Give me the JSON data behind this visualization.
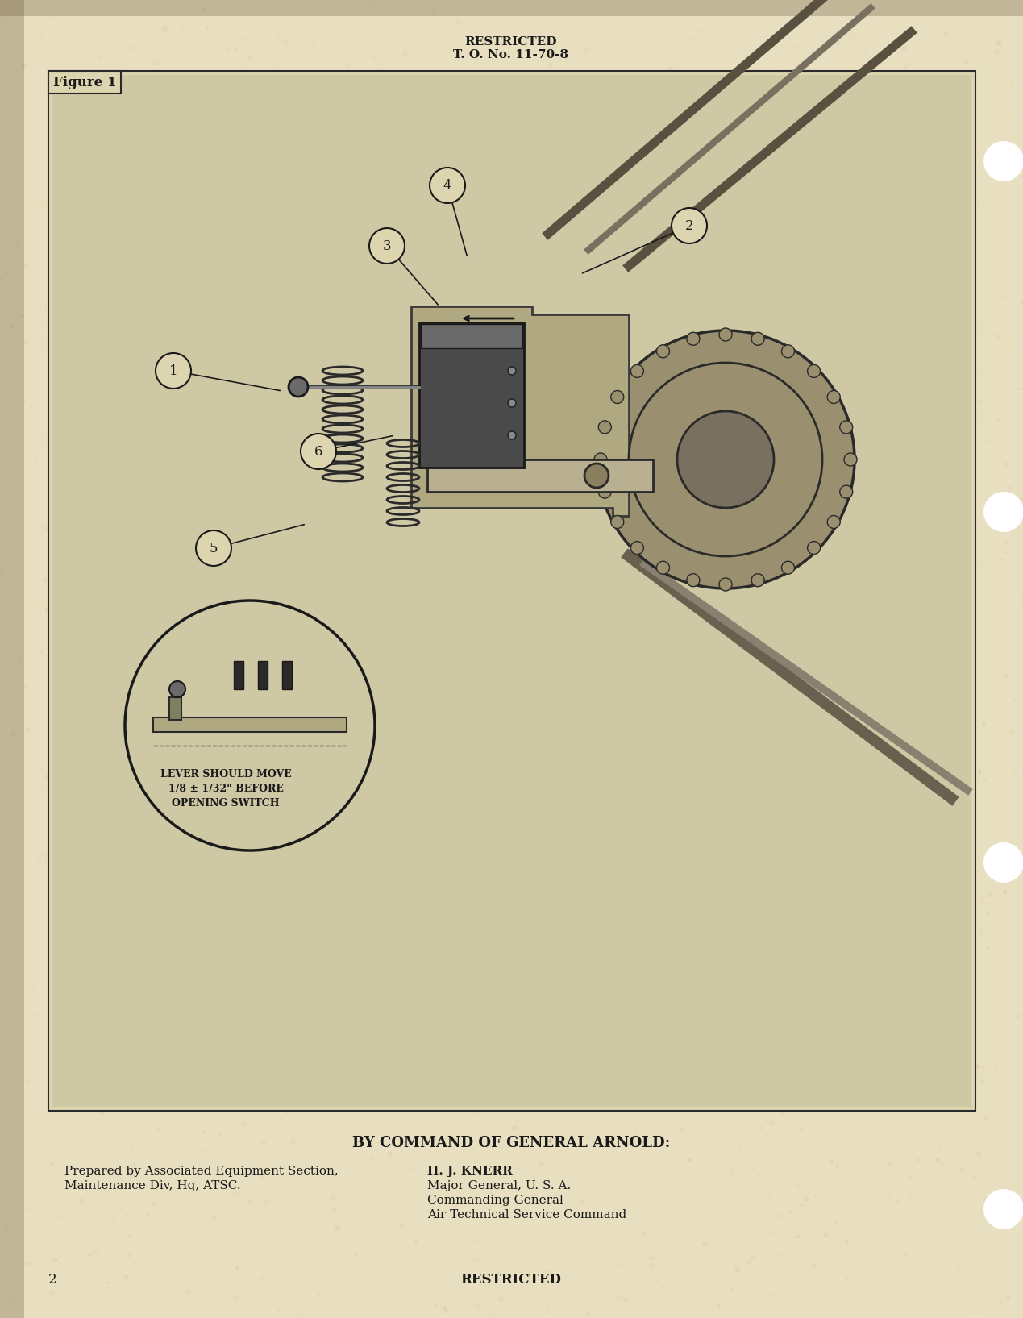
{
  "bg_color": "#e8dfc0",
  "paper_color": "#e8dfc0",
  "top_center_line1": "RESTRICTED",
  "top_center_line2": "T. O. No. 11-70-8",
  "figure_label": "Figure 1",
  "bottom_center": "BY COMMAND OF GENERAL ARNOLD:",
  "bottom_left_line1": "Prepared by Associated Equipment Section,",
  "bottom_left_line2": "Maintenance Div, Hq, ATSC.",
  "bottom_right_line1": "H. J. KNERR",
  "bottom_right_line2": "Major General, U. S. A.",
  "bottom_right_line3": "Commanding General",
  "bottom_right_line4": "Air Technical Service Command",
  "page_number": "2",
  "footer_center": "RESTRICTED",
  "border_color": "#2a2a2a",
  "text_color": "#1a1a1a",
  "image_bg": "#d8cfa8",
  "callout_numbers": [
    "1",
    "2",
    "3",
    "4",
    "5",
    "6"
  ],
  "inset_text_line1": "LEVER SHOULD MOVE",
  "inset_text_line2": "1/8 ± 1/32\" BEFORE",
  "inset_text_line3": "OPENING SWITCH"
}
